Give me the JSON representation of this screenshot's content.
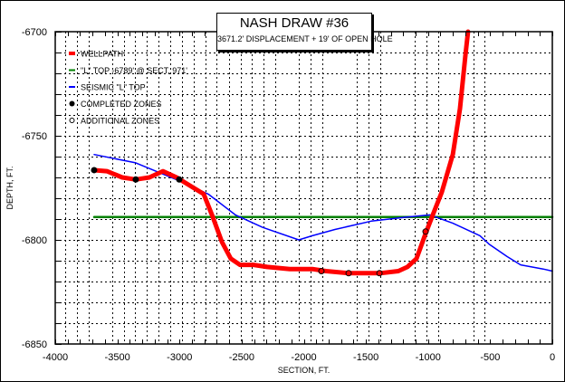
{
  "chart_data": {
    "type": "line",
    "title": "NASH DRAW #36",
    "subtitle": "3671.2' DISPLACEMENT + 19' OF OPEN HOLE",
    "xlabel": "SECTION, FT.",
    "ylabel": "DEPTH, FT.",
    "xlim": [
      -4000,
      0
    ],
    "ylim": [
      -6850,
      -6700
    ],
    "x_ticks": [
      -4000,
      -3500,
      -3000,
      -2500,
      -2000,
      -1500,
      -1000,
      -500,
      0
    ],
    "x_tick_labels": [
      "-4000",
      "-3500",
      "-3000",
      "-2500",
      "-2000",
      "-1500",
      "-1000",
      "-500",
      "0"
    ],
    "y_ticks": [
      -6700,
      -6750,
      -6800,
      -6850
    ],
    "y_tick_labels": [
      "-6700",
      "-6750",
      "-6800",
      "-6850"
    ],
    "grid": true,
    "x_gridlines": [
      -3920,
      -3825,
      -3730,
      -3541,
      -3446,
      -3359,
      -3264,
      -3170,
      -3075,
      -2980,
      -2885,
      -2790,
      -2703,
      -2601,
      -2506,
      -2419,
      -2324,
      -2230,
      -2040,
      -1945,
      -1851,
      -1574,
      -1479,
      -1384,
      -1107,
      -1013,
      -918,
      -634,
      -547
    ],
    "y_gridlines": [
      -6710,
      -6720,
      -6730,
      -6740,
      -6750,
      -6760,
      -6770,
      -6780,
      -6790,
      -6800,
      -6810,
      -6820,
      -6830,
      -6840
    ],
    "legend_position": "top-left",
    "legend": [
      {
        "label": "WELLPATH",
        "type": "line",
        "color": "#ff0000"
      },
      {
        "label": "\"L\" TOP -6789' @ SECT. 971'",
        "type": "line",
        "color": "#008000"
      },
      {
        "label": "SEISMIC \"L\" TOP",
        "type": "line",
        "color": "#0000ff"
      },
      {
        "label": "COMPLETED ZONES",
        "type": "filled-marker",
        "color": "#000000"
      },
      {
        "label": "ADDITIONAL ZONES",
        "type": "open-marker",
        "color": "#000000"
      }
    ],
    "series": [
      {
        "name": "WELLPATH",
        "color": "#ff0000",
        "x": [
          -3687,
          -3585,
          -3461,
          -3352,
          -3242,
          -3133,
          -3024,
          -2914,
          -2805,
          -2732,
          -2659,
          -2587,
          -2514,
          -2404,
          -2295,
          -2113,
          -1931,
          -1821,
          -1639,
          -1384,
          -1239,
          -1166,
          -1093,
          -1020,
          -962,
          -889,
          -801,
          -743,
          -699,
          -678
        ],
        "y": [
          -6766.5,
          -6767,
          -6770,
          -6771,
          -6770,
          -6767,
          -6770,
          -6774,
          -6778,
          -6789,
          -6801,
          -6809,
          -6812,
          -6812,
          -6813,
          -6814,
          -6814,
          -6815,
          -6816,
          -6816,
          -6815,
          -6813,
          -6809,
          -6797,
          -6788,
          -6777,
          -6759,
          -6737,
          -6711,
          -6700
        ]
      },
      {
        "name": "\"L\" TOP -6789' @ SECT. 971'",
        "color": "#008000",
        "x": [
          -3687,
          0
        ],
        "y": [
          -6789,
          -6789
        ]
      },
      {
        "name": "SEISMIC \"L\" TOP",
        "color": "#0000ff",
        "x": [
          -3687,
          -3352,
          -2987,
          -2769,
          -2550,
          -2331,
          -2040,
          -1931,
          -1749,
          -1457,
          -1166,
          -984,
          -801,
          -582,
          -510,
          -364,
          -255,
          -73,
          0
        ],
        "y": [
          -6759,
          -6763,
          -6772,
          -6778,
          -6788,
          -6794,
          -6800,
          -6798,
          -6795,
          -6791,
          -6789,
          -6788,
          -6792,
          -6798,
          -6802,
          -6808,
          -6812,
          -6814,
          -6815
        ]
      }
    ],
    "completed_zones": [
      {
        "x": -3687,
        "y": -6766.5
      },
      {
        "x": -3352,
        "y": -6771
      },
      {
        "x": -3002,
        "y": -6771
      }
    ],
    "additional_zones": [
      {
        "x": -1858,
        "y": -6815
      },
      {
        "x": -1639,
        "y": -6816
      },
      {
        "x": -1391,
        "y": -6816
      },
      {
        "x": -1020,
        "y": -6796
      }
    ]
  }
}
